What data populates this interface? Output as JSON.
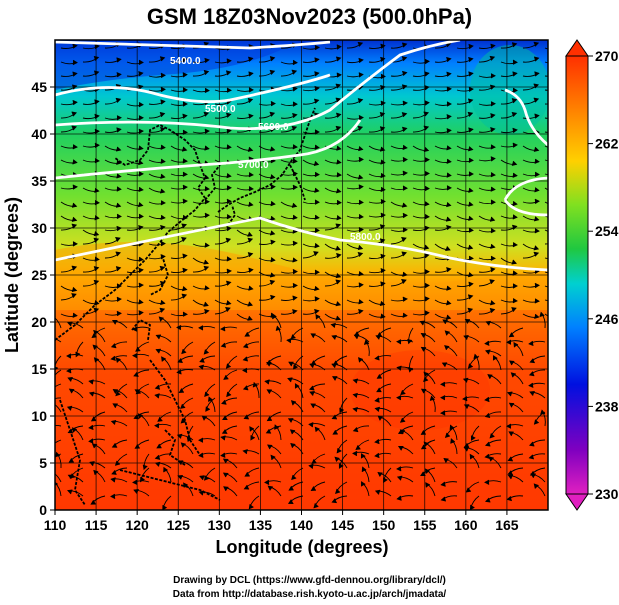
{
  "title": "GSM 18Z03Nov2023 (500.0hPa)",
  "x_axis": {
    "label": "Longitude (degrees)",
    "ticks": [
      "110",
      "115",
      "120",
      "125",
      "130",
      "135",
      "140",
      "145",
      "150",
      "155",
      "160",
      "165"
    ],
    "range": [
      110,
      170
    ]
  },
  "y_axis": {
    "label": "Latitude (degrees)",
    "ticks": [
      "0",
      "5",
      "10",
      "15",
      "20",
      "25",
      "30",
      "35",
      "40",
      "45"
    ],
    "range": [
      0,
      50
    ]
  },
  "colorbar": {
    "ticks": [
      "230",
      "238",
      "246",
      "254",
      "262",
      "270"
    ],
    "range": [
      230,
      270
    ],
    "colors": [
      "#e020c0",
      "#8000c0",
      "#0030e0",
      "#00a0ff",
      "#00e0c0",
      "#30d040",
      "#a0e020",
      "#ffd000",
      "#ff8000",
      "#ff3000"
    ]
  },
  "contours": [
    {
      "label": "5400.0",
      "level": 5400
    },
    {
      "label": "5500.0",
      "level": 5500
    },
    {
      "label": "5600.0",
      "level": 5600
    },
    {
      "label": "5700.0",
      "level": 5700
    },
    {
      "label": "5800.0",
      "level": 5800
    }
  ],
  "credits": {
    "line1": "Drawing by DCL (https://www.gfd-dennou.org/library/dcl/)",
    "line2": "Data from http://database.rish.kyoto-u.ac.jp/arch/jmadata/"
  }
}
